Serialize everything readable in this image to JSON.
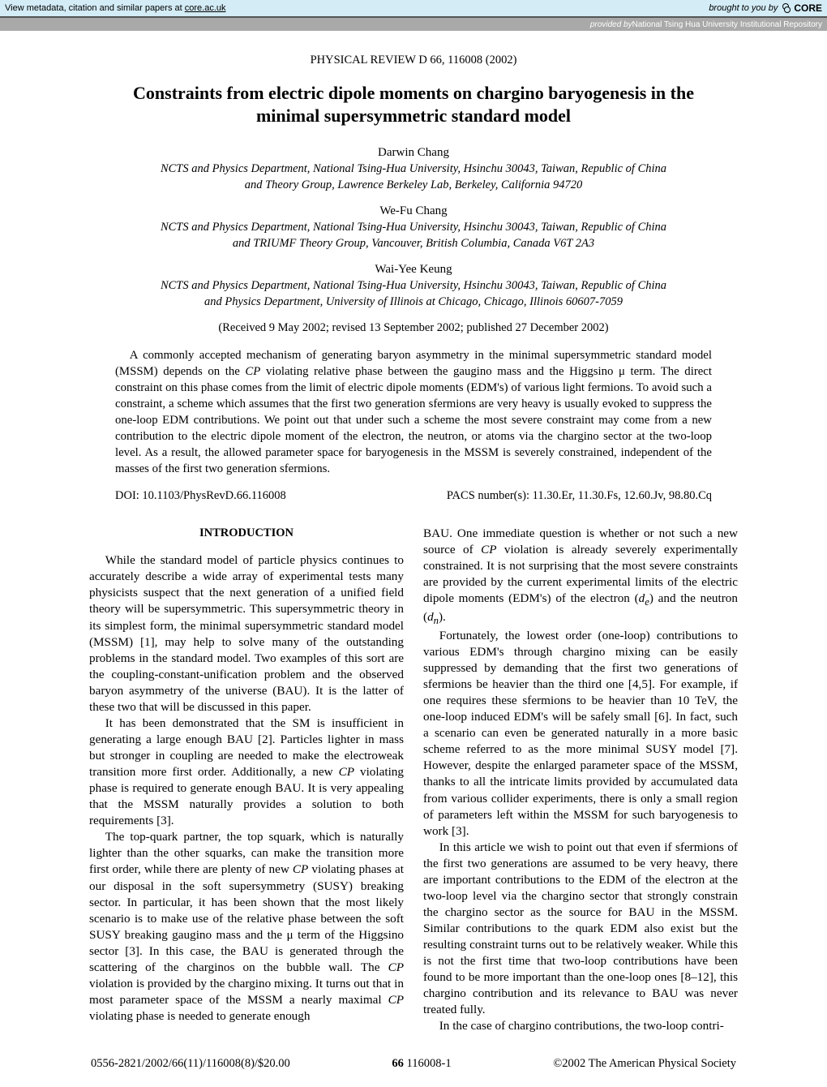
{
  "banner": {
    "left_prefix": "View metadata, citation and similar papers at ",
    "left_link": "core.ac.uk",
    "brought": "brought to you by",
    "brand": "CORE",
    "provided_prefix": "provided by ",
    "provided_repo": "National Tsing Hua University Institutional Repository"
  },
  "journal_header": "PHYSICAL REVIEW D 66, 116008 (2002)",
  "title": "Constraints from electric dipole moments on chargino baryogenesis in the minimal supersymmetric standard model",
  "authors": [
    {
      "name": "Darwin Chang",
      "affils": [
        "NCTS and Physics Department, National Tsing-Hua University, Hsinchu 30043, Taiwan, Republic of China",
        "and Theory Group, Lawrence Berkeley Lab, Berkeley, California 94720"
      ]
    },
    {
      "name": "We-Fu Chang",
      "affils": [
        "NCTS and Physics Department, National Tsing-Hua University, Hsinchu 30043, Taiwan, Republic of China",
        "and TRIUMF Theory Group, Vancouver, British Columbia, Canada V6T 2A3"
      ]
    },
    {
      "name": "Wai-Yee Keung",
      "affils": [
        "NCTS and Physics Department, National Tsing-Hua University, Hsinchu 30043, Taiwan, Republic of China",
        "and Physics Department, University of Illinois at Chicago, Chicago, Illinois 60607-7059"
      ]
    }
  ],
  "dates": "(Received 9 May 2002; revised 13 September 2002; published 27 December 2002)",
  "abstract": "A commonly accepted mechanism of generating baryon asymmetry in the minimal supersymmetric standard model (MSSM) depends on the CP violating relative phase between the gaugino mass and the Higgsino μ term. The direct constraint on this phase comes from the limit of electric dipole moments (EDM's) of various light fermions. To avoid such a constraint, a scheme which assumes that the first two generation sfermions are very heavy is usually evoked to suppress the one-loop EDM contributions. We point out that under such a scheme the most severe constraint may come from a new contribution to the electric dipole moment of the electron, the neutron, or atoms via the chargino sector at the two-loop level. As a result, the allowed parameter space for baryogenesis in the MSSM is severely constrained, independent of the masses of the first two generation sfermions.",
  "doi": "DOI: 10.1103/PhysRevD.66.116008",
  "pacs": "PACS number(s): 11.30.Er, 11.30.Fs, 12.60.Jv, 98.80.Cq",
  "section_heading": "INTRODUCTION",
  "body": {
    "left": [
      "While the standard model of particle physics continues to accurately describe a wide array of experimental tests many physicists suspect that the next generation of a unified field theory will be supersymmetric. This supersymmetric theory in its simplest form, the minimal supersymmetric standard model (MSSM) [1], may help to solve many of the outstanding problems in the standard model. Two examples of this sort are the coupling-constant-unification problem and the observed baryon asymmetry of the universe (BAU). It is the latter of these two that will be discussed in this paper.",
      "It has been demonstrated that the SM is insufficient in generating a large enough BAU [2]. Particles lighter in mass but stronger in coupling are needed to make the electroweak transition more first order. Additionally, a new CP violating phase is required to generate enough BAU. It is very appealing that the MSSM naturally provides a solution to both requirements [3].",
      "The top-quark partner, the top squark, which is naturally lighter than the other squarks, can make the transition more first order, while there are plenty of new CP violating phases at our disposal in the soft supersymmetry (SUSY) breaking sector. In particular, it has been shown that the most likely scenario is to make use of the relative phase between the soft SUSY breaking gaugino mass and the μ term of the Higgsino sector [3]. In this case, the BAU is generated through the scattering of the charginos on the bubble wall. The CP violation is provided by the chargino mixing. It turns out that in most parameter space of the MSSM a nearly maximal CP violating phase is needed to generate enough"
    ],
    "right": [
      "BAU. One immediate question is whether or not such a new source of CP violation is already severely experimentally constrained. It is not surprising that the most severe constraints are provided by the current experimental limits of the electric dipole moments (EDM's) of the electron (dₑ) and the neutron (dₙ).",
      "Fortunately, the lowest order (one-loop) contributions to various EDM's through chargino mixing can be easily suppressed by demanding that the first two generations of sfermions be heavier than the third one [4,5]. For example, if one requires these sfermions to be heavier than 10 TeV, the one-loop induced EDM's will be safely small [6]. In fact, such a scenario can even be generated naturally in a more basic scheme referred to as the more minimal SUSY model [7]. However, despite the enlarged parameter space of the MSSM, thanks to all the intricate limits provided by accumulated data from various collider experiments, there is only a small region of parameters left within the MSSM for such baryogenesis to work [3].",
      "In this article we wish to point out that even if sfermions of the first two generations are assumed to be very heavy, there are important contributions to the EDM of the electron at the two-loop level via the chargino sector that strongly constrain the chargino sector as the source for BAU in the MSSM. Similar contributions to the quark EDM also exist but the resulting constraint turns out to be relatively weaker. While this is not the first time that two-loop contributions have been found to be more important than the one-loop ones [8–12], this chargino contribution and its relevance to BAU was never treated fully.",
      "In the case of chargino contributions, the two-loop contri-"
    ]
  },
  "footer": {
    "left": "0556-2821/2002/66(11)/116008(8)/$20.00",
    "center_vol": "66",
    "center_page": " 116008-1",
    "right": "©2002 The American Physical Society"
  },
  "colors": {
    "banner_bg": "#d3ecf6",
    "provided_bg": "#a9a9a9",
    "text": "#000000",
    "page_bg": "#ffffff"
  }
}
